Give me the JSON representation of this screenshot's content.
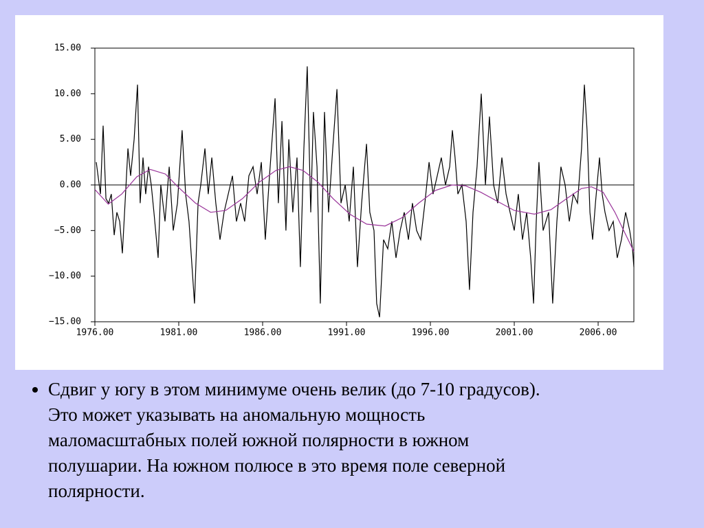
{
  "chart_data": {
    "type": "line",
    "xlim": [
      1976,
      2008.13
    ],
    "ylim": [
      -15,
      15
    ],
    "xticks": [
      {
        "value": 1976,
        "label": "1976.00"
      },
      {
        "value": 1981,
        "label": "1981.00"
      },
      {
        "value": 1986,
        "label": "1986.00"
      },
      {
        "value": 1991,
        "label": "1991.00"
      },
      {
        "value": 1996,
        "label": "1996.00"
      },
      {
        "value": 2001,
        "label": "2001.00"
      },
      {
        "value": 2006,
        "label": "2006.00"
      }
    ],
    "yticks": [
      {
        "value": 15,
        "label": "15.00"
      },
      {
        "value": 10,
        "label": "10.00"
      },
      {
        "value": 5,
        "label": "5.00"
      },
      {
        "value": 0,
        "label": "0.00"
      },
      {
        "value": -5,
        "label": "−5.00"
      },
      {
        "value": -10,
        "label": "−10.00"
      },
      {
        "value": -15,
        "label": "−15.00"
      }
    ],
    "reference_line": 0,
    "series": [
      {
        "color": "#000000",
        "x": [
          1976.08,
          1976.33,
          1976.49,
          1976.66,
          1976.82,
          1976.98,
          1977.15,
          1977.31,
          1977.48,
          1977.64,
          1977.8,
          1977.97,
          1978.13,
          1978.34,
          1978.54,
          1978.7,
          1978.87,
          1979.03,
          1979.2,
          1979.36,
          1979.52,
          1979.77,
          1979.93,
          1980.18,
          1980.43,
          1980.67,
          1980.92,
          1981.2,
          1981.41,
          1981.61,
          1981.94,
          1982.15,
          1982.31,
          1982.56,
          1982.76,
          1982.97,
          1983.21,
          1983.46,
          1983.7,
          1983.95,
          1984.2,
          1984.44,
          1984.69,
          1984.93,
          1985.18,
          1985.43,
          1985.67,
          1985.92,
          1986.16,
          1986.41,
          1986.74,
          1986.94,
          1987.15,
          1987.39,
          1987.56,
          1987.8,
          1988.05,
          1988.25,
          1988.46,
          1988.66,
          1988.87,
          1989.03,
          1989.24,
          1989.44,
          1989.69,
          1989.93,
          1990.18,
          1990.43,
          1990.67,
          1990.92,
          1991.16,
          1991.41,
          1991.65,
          1991.9,
          1992.19,
          1992.39,
          1992.64,
          1992.8,
          1992.97,
          1993.21,
          1993.46,
          1993.7,
          1993.95,
          1994.2,
          1994.44,
          1994.69,
          1994.93,
          1995.18,
          1995.42,
          1995.67,
          1995.92,
          1996.16,
          1996.41,
          1996.65,
          1996.9,
          1997.15,
          1997.31,
          1997.47,
          1997.64,
          1997.88,
          1998.13,
          1998.33,
          1998.54,
          1998.78,
          1999.03,
          1999.28,
          1999.52,
          1999.77,
          2000.01,
          2000.26,
          2000.51,
          2000.75,
          2001.0,
          2001.24,
          2001.49,
          2001.74,
          2001.98,
          2002.15,
          2002.31,
          2002.47,
          2002.72,
          2003.05,
          2003.29,
          2003.54,
          2003.78,
          2004.03,
          2004.28,
          2004.52,
          2004.77,
          2005.01,
          2005.18,
          2005.34,
          2005.51,
          2005.67,
          2005.84,
          2006.08,
          2006.24,
          2006.41,
          2006.65,
          2006.9,
          2007.14,
          2007.39,
          2007.64,
          2007.88,
          2008.05,
          2008.13
        ],
        "values": [
          2.5,
          -1,
          6.5,
          -1.5,
          -2,
          -1,
          -5.5,
          -3,
          -4,
          -7.5,
          -2,
          4,
          1,
          5,
          11,
          -2,
          3,
          -1,
          2,
          0,
          -3,
          -8,
          0,
          -4,
          2,
          -5,
          -2,
          6,
          -1,
          -4,
          -13,
          -2,
          0,
          4,
          -1,
          3,
          -2,
          -6,
          -3,
          -1,
          1,
          -4,
          -2,
          -4,
          1,
          2,
          -1,
          2.5,
          -6,
          1,
          9.5,
          -2,
          7,
          -5,
          5,
          -3,
          3,
          -9,
          4,
          13,
          -3,
          8,
          2,
          -13,
          8,
          -3,
          4,
          10.5,
          -2,
          0,
          -4,
          2,
          -9,
          -2,
          4.5,
          -3,
          -5,
          -13,
          -14.5,
          -6,
          -7,
          -4,
          -8,
          -5,
          -3,
          -6,
          -2,
          -5,
          -6,
          -2,
          2.5,
          -1,
          1,
          3,
          0,
          2,
          6,
          3,
          -1,
          0,
          -4,
          -11.5,
          -3,
          2,
          10,
          0,
          7.5,
          0,
          -2,
          3,
          -1,
          -3,
          -5,
          -1,
          -6,
          -3,
          -8,
          -13,
          -4,
          2.5,
          -5,
          -3,
          -13,
          -4,
          2,
          0,
          -4,
          -1,
          -2,
          4,
          11,
          6,
          -3,
          -6,
          -2,
          3,
          -1,
          -3,
          -5,
          -4,
          -8,
          -6,
          -3,
          -5,
          -7,
          -9
        ]
      },
      {
        "color": "#993399",
        "x": [
          1976.0,
          1976.8,
          1977.6,
          1978.5,
          1979.3,
          1980.2,
          1981.0,
          1982.0,
          1982.9,
          1983.8,
          1984.8,
          1985.8,
          1986.8,
          1987.6,
          1988.4,
          1989.3,
          1990.2,
          1991.2,
          1992.2,
          1993.3,
          1994.3,
          1995.3,
          1996.3,
          1997.3,
          1998.1,
          1999.0,
          2000.0,
          2001.0,
          2002.2,
          2003.2,
          2004.2,
          2005.0,
          2005.6,
          2006.3,
          2007.0,
          2007.6,
          2008.13
        ],
        "values": [
          -0.5,
          -2.1,
          -1,
          0.9,
          1.7,
          1.2,
          -0.3,
          -2,
          -3,
          -2.8,
          -1.5,
          0.3,
          1.6,
          2,
          1.6,
          0.3,
          -1.5,
          -3.2,
          -4.3,
          -4.5,
          -3.6,
          -2,
          -0.6,
          0,
          -0.1,
          -0.8,
          -1.8,
          -2.8,
          -3.2,
          -2.7,
          -1.4,
          -0.4,
          -0.2,
          -0.8,
          -3,
          -5.3,
          -7.3
        ]
      }
    ]
  },
  "bullet": {
    "lines": [
      "Сдвиг у югу в этом минимуме очень велик (до 7-10 градусов).",
      "Это может указывать на аномальную мощность",
      "маломасштабных полей южной полярности в южном",
      "полушарии. На южном полюсе в это время поле северной",
      "полярности."
    ]
  }
}
